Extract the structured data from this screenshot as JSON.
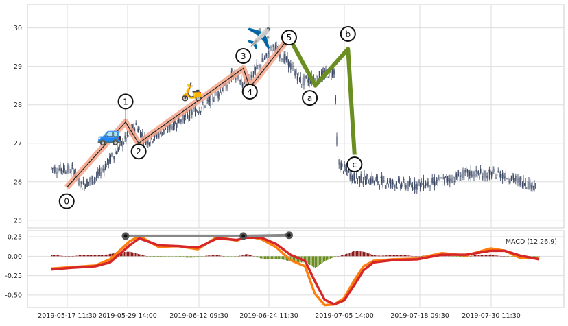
{
  "chart_data": [
    {
      "type": "candlestick",
      "panel": "price",
      "ylim": [
        24.8,
        30.6
      ],
      "yticks": [
        25,
        26,
        27,
        28,
        29,
        30
      ],
      "grid": true,
      "wave_points": [
        {
          "label": "0",
          "x": "2019-05-21",
          "y": 25.85
        },
        {
          "label": "1",
          "x": "2019-05-30",
          "y": 27.55
        },
        {
          "label": "2",
          "x": "2019-06-01",
          "y": 27.0
        },
        {
          "label": "3",
          "x": "2019-06-17",
          "y": 28.95
        },
        {
          "label": "4",
          "x": "2019-06-18",
          "y": 28.45
        },
        {
          "label": "5",
          "x": "2019-06-24",
          "y": 29.75
        },
        {
          "label": "a",
          "x": "2019-06-28",
          "y": 28.5
        },
        {
          "label": "b",
          "x": "2019-07-03",
          "y": 29.45
        },
        {
          "label": "c",
          "x": "2019-07-04",
          "y": 26.7
        }
      ],
      "icons": [
        "car-icon",
        "scooter-icon",
        "airplane-icon"
      ]
    },
    {
      "type": "line",
      "panel": "macd",
      "legend": "MACD (12,26,9)",
      "legend_position": "top-right",
      "ylim": [
        -0.66,
        0.33
      ],
      "yticks": [
        0.25,
        0.0,
        -0.25,
        -0.5
      ],
      "x_tick_labels": [
        "2019-05-17 11:30",
        "2019-05-29 14:00",
        "2019-06-12 09:30",
        "2019-06-24 11:30",
        "2019-07-05 14:00",
        "2019-07-18 09:30",
        "2019-07-30 11:30"
      ],
      "divergence_points": [
        {
          "x": "2019-05-30",
          "y": 0.26
        },
        {
          "x": "2019-06-17",
          "y": 0.26
        },
        {
          "x": "2019-06-24",
          "y": 0.27
        }
      ],
      "series": [
        {
          "color": "#ff7f0e",
          "x_frac": [
            0.0,
            0.04,
            0.09,
            0.12,
            0.16,
            0.18,
            0.22,
            0.26,
            0.3,
            0.34,
            0.38,
            0.4,
            0.43,
            0.46,
            0.49,
            0.52,
            0.54,
            0.56,
            0.58,
            0.6,
            0.62,
            0.64,
            0.66,
            0.7,
            0.75,
            0.8,
            0.85,
            0.9,
            0.93,
            0.96,
            1.0
          ],
          "values": [
            -0.16,
            -0.14,
            -0.12,
            -0.04,
            0.19,
            0.26,
            0.12,
            0.13,
            0.09,
            0.25,
            0.2,
            0.26,
            0.22,
            0.12,
            -0.05,
            -0.13,
            -0.48,
            -0.63,
            -0.62,
            -0.54,
            -0.32,
            -0.13,
            -0.06,
            -0.04,
            -0.03,
            0.04,
            0.01,
            0.1,
            0.07,
            -0.02,
            -0.03
          ]
        },
        {
          "color": "#d62728",
          "x_frac": [
            0.0,
            0.04,
            0.09,
            0.12,
            0.16,
            0.18,
            0.22,
            0.26,
            0.3,
            0.34,
            0.38,
            0.4,
            0.43,
            0.46,
            0.49,
            0.52,
            0.54,
            0.56,
            0.58,
            0.6,
            0.62,
            0.64,
            0.66,
            0.7,
            0.75,
            0.8,
            0.85,
            0.9,
            0.93,
            0.96,
            1.0
          ],
          "values": [
            -0.17,
            -0.15,
            -0.13,
            -0.08,
            0.14,
            0.23,
            0.14,
            0.13,
            0.11,
            0.23,
            0.21,
            0.24,
            0.24,
            0.16,
            0.02,
            -0.06,
            -0.32,
            -0.56,
            -0.62,
            -0.57,
            -0.38,
            -0.18,
            -0.08,
            -0.05,
            -0.04,
            0.02,
            0.02,
            0.07,
            0.07,
            0.01,
            -0.04
          ]
        }
      ]
    }
  ]
}
